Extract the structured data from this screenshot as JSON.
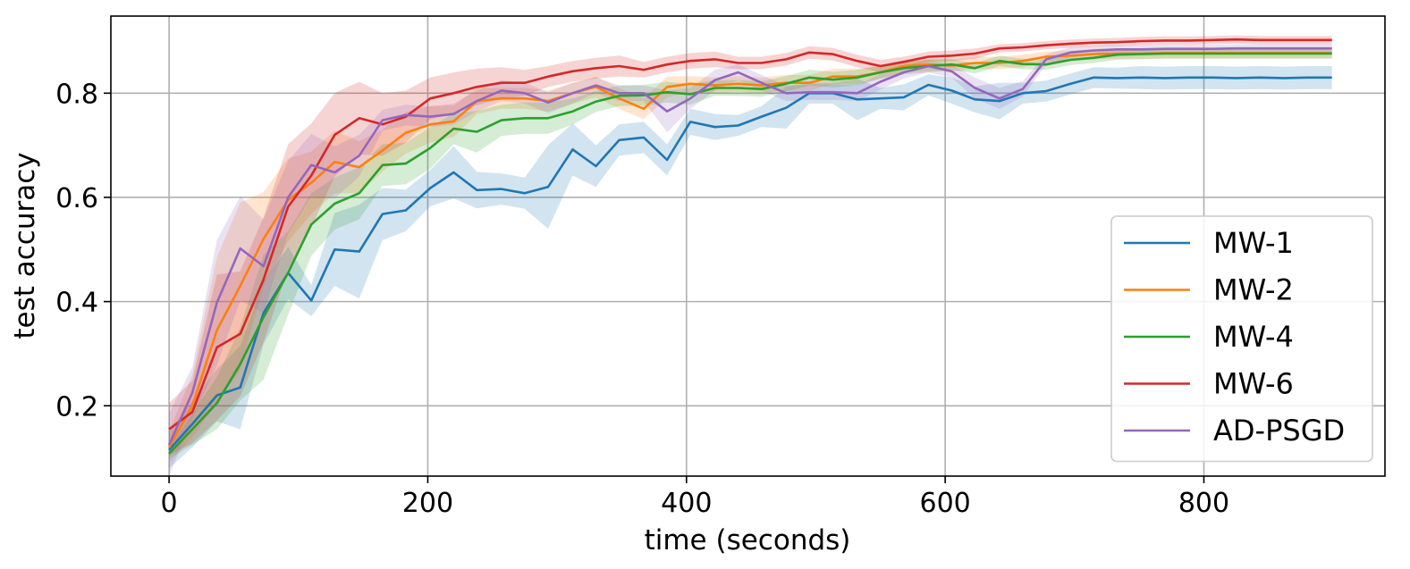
{
  "chart_data": {
    "type": "line",
    "xlabel": "time (seconds)",
    "ylabel": "test accuracy",
    "xlim": [
      -45,
      940
    ],
    "ylim": [
      0.065,
      0.948
    ],
    "xticks": [
      0,
      200,
      400,
      600,
      800
    ],
    "yticks": [
      0.2,
      0.4,
      0.6,
      0.8
    ],
    "xtick_labels": [
      "0",
      "200",
      "400",
      "600",
      "800"
    ],
    "ytick_labels": [
      "0.2",
      "0.4",
      "0.6",
      "0.8"
    ],
    "grid": true,
    "legend_position": "lower right",
    "series": [
      {
        "name": "MW-1",
        "color": "#1f77b4",
        "x": [
          0,
          18,
          37,
          55,
          73,
          92,
          110,
          128,
          147,
          165,
          183,
          202,
          220,
          238,
          257,
          275,
          293,
          312,
          330,
          348,
          367,
          385,
          403,
          422,
          440,
          458,
          477,
          495,
          513,
          532,
          550,
          568,
          587,
          605,
          623,
          642,
          660,
          678,
          697,
          715,
          733,
          752,
          770,
          788,
          807,
          825,
          843,
          862,
          880,
          899
        ],
        "y": [
          0.115,
          0.165,
          0.22,
          0.235,
          0.378,
          0.455,
          0.402,
          0.5,
          0.496,
          0.568,
          0.575,
          0.618,
          0.648,
          0.614,
          0.616,
          0.608,
          0.62,
          0.692,
          0.66,
          0.71,
          0.715,
          0.672,
          0.745,
          0.735,
          0.738,
          0.755,
          0.772,
          0.8,
          0.8,
          0.788,
          0.79,
          0.792,
          0.816,
          0.805,
          0.788,
          0.785,
          0.8,
          0.804,
          0.818,
          0.83,
          0.829,
          0.83,
          0.829,
          0.83,
          0.83,
          0.829,
          0.83,
          0.829,
          0.83,
          0.83
        ],
        "band": [
          0.035,
          0.045,
          0.05,
          0.08,
          0.06,
          0.05,
          0.03,
          0.07,
          0.09,
          0.05,
          0.04,
          0.035,
          0.05,
          0.035,
          0.03,
          0.03,
          0.08,
          0.05,
          0.04,
          0.03,
          0.03,
          0.03,
          0.025,
          0.025,
          0.02,
          0.02,
          0.04,
          0.02,
          0.02,
          0.04,
          0.02,
          0.025,
          0.02,
          0.025,
          0.025,
          0.035,
          0.02,
          0.02,
          0.02,
          0.02,
          0.02,
          0.022,
          0.022,
          0.022,
          0.022,
          0.022,
          0.022,
          0.022,
          0.022,
          0.022
        ]
      },
      {
        "name": "MW-2",
        "color": "#ff7f0e",
        "x": [
          0,
          18,
          37,
          55,
          73,
          92,
          110,
          128,
          147,
          165,
          183,
          202,
          220,
          238,
          257,
          275,
          293,
          312,
          330,
          348,
          367,
          385,
          403,
          422,
          440,
          458,
          477,
          495,
          513,
          532,
          550,
          568,
          587,
          605,
          623,
          642,
          660,
          678,
          697,
          715,
          733,
          752,
          770,
          788,
          807,
          825,
          843,
          862,
          880,
          899
        ],
        "y": [
          0.12,
          0.2,
          0.345,
          0.43,
          0.52,
          0.595,
          0.628,
          0.668,
          0.658,
          0.69,
          0.724,
          0.74,
          0.746,
          0.785,
          0.79,
          0.79,
          0.785,
          0.8,
          0.812,
          0.79,
          0.77,
          0.812,
          0.818,
          0.815,
          0.818,
          0.815,
          0.82,
          0.82,
          0.832,
          0.832,
          0.84,
          0.852,
          0.855,
          0.853,
          0.858,
          0.858,
          0.862,
          0.87,
          0.872,
          0.875,
          0.876,
          0.876,
          0.877,
          0.877,
          0.877,
          0.877,
          0.877,
          0.877,
          0.877,
          0.877
        ],
        "band": [
          0.03,
          0.06,
          0.14,
          0.16,
          0.09,
          0.08,
          0.06,
          0.06,
          0.05,
          0.04,
          0.04,
          0.035,
          0.03,
          0.025,
          0.02,
          0.02,
          0.02,
          0.02,
          0.02,
          0.02,
          0.02,
          0.02,
          0.015,
          0.015,
          0.015,
          0.015,
          0.015,
          0.015,
          0.015,
          0.015,
          0.012,
          0.012,
          0.012,
          0.012,
          0.012,
          0.012,
          0.012,
          0.01,
          0.01,
          0.01,
          0.01,
          0.01,
          0.01,
          0.01,
          0.01,
          0.01,
          0.01,
          0.01,
          0.01,
          0.01
        ]
      },
      {
        "name": "MW-4",
        "color": "#2ca02c",
        "x": [
          0,
          18,
          37,
          55,
          73,
          92,
          110,
          128,
          147,
          165,
          183,
          202,
          220,
          238,
          257,
          275,
          293,
          312,
          330,
          348,
          367,
          385,
          403,
          422,
          440,
          458,
          477,
          495,
          513,
          532,
          550,
          568,
          587,
          605,
          623,
          642,
          660,
          678,
          697,
          715,
          733,
          752,
          770,
          788,
          807,
          825,
          843,
          862,
          880,
          899
        ],
        "y": [
          0.108,
          0.155,
          0.205,
          0.28,
          0.37,
          0.455,
          0.548,
          0.588,
          0.608,
          0.662,
          0.665,
          0.695,
          0.732,
          0.726,
          0.748,
          0.752,
          0.752,
          0.765,
          0.784,
          0.795,
          0.796,
          0.802,
          0.798,
          0.81,
          0.81,
          0.808,
          0.818,
          0.83,
          0.826,
          0.83,
          0.84,
          0.848,
          0.852,
          0.855,
          0.848,
          0.862,
          0.856,
          0.855,
          0.864,
          0.868,
          0.874,
          0.875,
          0.876,
          0.876,
          0.876,
          0.876,
          0.876,
          0.876,
          0.876,
          0.876
        ],
        "band": [
          0.01,
          0.03,
          0.05,
          0.07,
          0.12,
          0.08,
          0.06,
          0.05,
          0.05,
          0.04,
          0.04,
          0.04,
          0.03,
          0.04,
          0.03,
          0.03,
          0.03,
          0.025,
          0.02,
          0.02,
          0.02,
          0.02,
          0.02,
          0.015,
          0.015,
          0.015,
          0.015,
          0.015,
          0.015,
          0.015,
          0.012,
          0.012,
          0.012,
          0.01,
          0.01,
          0.01,
          0.01,
          0.01,
          0.01,
          0.01,
          0.01,
          0.01,
          0.01,
          0.01,
          0.01,
          0.01,
          0.01,
          0.01,
          0.01,
          0.01
        ]
      },
      {
        "name": "MW-6",
        "color": "#d62728",
        "x": [
          0,
          18,
          37,
          55,
          73,
          92,
          110,
          128,
          147,
          165,
          183,
          202,
          220,
          238,
          257,
          275,
          293,
          312,
          330,
          348,
          367,
          385,
          403,
          422,
          440,
          458,
          477,
          495,
          513,
          532,
          550,
          568,
          587,
          605,
          623,
          642,
          660,
          678,
          697,
          715,
          733,
          752,
          770,
          788,
          807,
          825,
          843,
          862,
          880,
          899
        ],
        "y": [
          0.155,
          0.188,
          0.312,
          0.338,
          0.442,
          0.582,
          0.642,
          0.72,
          0.752,
          0.74,
          0.755,
          0.79,
          0.8,
          0.812,
          0.82,
          0.82,
          0.832,
          0.842,
          0.848,
          0.852,
          0.845,
          0.855,
          0.862,
          0.865,
          0.858,
          0.858,
          0.865,
          0.878,
          0.875,
          0.862,
          0.852,
          0.86,
          0.87,
          0.872,
          0.876,
          0.886,
          0.888,
          0.892,
          0.895,
          0.897,
          0.898,
          0.9,
          0.901,
          0.901,
          0.902,
          0.903,
          0.902,
          0.902,
          0.902,
          0.902
        ],
        "band": [
          0.05,
          0.06,
          0.14,
          0.12,
          0.12,
          0.12,
          0.1,
          0.08,
          0.07,
          0.06,
          0.05,
          0.04,
          0.04,
          0.035,
          0.03,
          0.025,
          0.02,
          0.02,
          0.02,
          0.02,
          0.015,
          0.015,
          0.015,
          0.015,
          0.012,
          0.012,
          0.012,
          0.012,
          0.012,
          0.012,
          0.012,
          0.01,
          0.01,
          0.01,
          0.01,
          0.008,
          0.008,
          0.008,
          0.008,
          0.008,
          0.008,
          0.008,
          0.008,
          0.008,
          0.008,
          0.008,
          0.008,
          0.008,
          0.008,
          0.008
        ]
      },
      {
        "name": "AD-PSGD",
        "color": "#9467bd",
        "x": [
          0,
          18,
          37,
          55,
          73,
          92,
          110,
          128,
          147,
          165,
          183,
          202,
          220,
          238,
          257,
          275,
          293,
          312,
          330,
          348,
          367,
          385,
          403,
          422,
          440,
          458,
          477,
          495,
          513,
          532,
          550,
          568,
          587,
          605,
          623,
          642,
          660,
          678,
          697,
          715,
          733,
          752,
          770,
          788,
          807,
          825,
          843,
          862,
          880,
          899
        ],
        "y": [
          0.125,
          0.225,
          0.398,
          0.502,
          0.468,
          0.6,
          0.662,
          0.648,
          0.68,
          0.748,
          0.758,
          0.755,
          0.76,
          0.785,
          0.805,
          0.8,
          0.782,
          0.8,
          0.815,
          0.8,
          0.8,
          0.765,
          0.79,
          0.825,
          0.84,
          0.82,
          0.8,
          0.802,
          0.802,
          0.8,
          0.822,
          0.84,
          0.852,
          0.842,
          0.81,
          0.79,
          0.808,
          0.865,
          0.878,
          0.882,
          0.884,
          0.884,
          0.885,
          0.885,
          0.885,
          0.886,
          0.886,
          0.886,
          0.886,
          0.886
        ],
        "band": [
          0.06,
          0.05,
          0.12,
          0.1,
          0.09,
          0.07,
          0.06,
          0.05,
          0.04,
          0.02,
          0.02,
          0.02,
          0.02,
          0.02,
          0.02,
          0.02,
          0.02,
          0.02,
          0.015,
          0.015,
          0.015,
          0.04,
          0.02,
          0.02,
          0.015,
          0.015,
          0.015,
          0.015,
          0.015,
          0.015,
          0.015,
          0.012,
          0.012,
          0.012,
          0.02,
          0.02,
          0.015,
          0.01,
          0.01,
          0.008,
          0.008,
          0.008,
          0.008,
          0.008,
          0.008,
          0.008,
          0.008,
          0.008,
          0.008,
          0.008
        ]
      }
    ]
  }
}
